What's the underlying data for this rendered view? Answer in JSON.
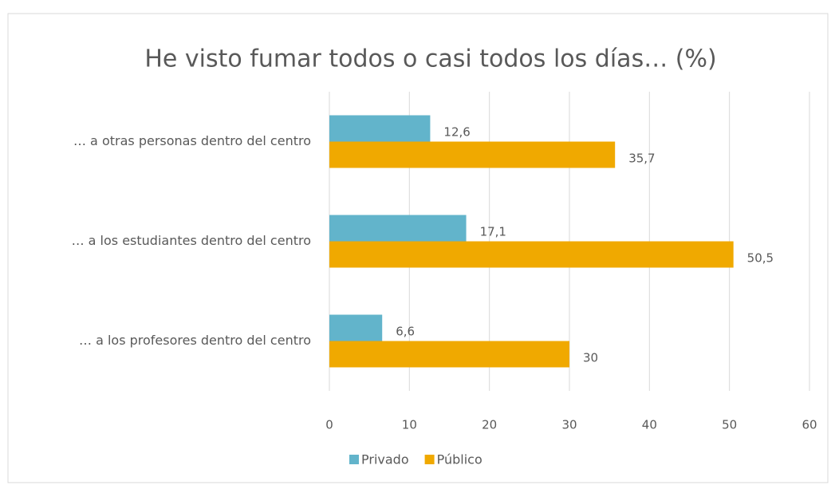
{
  "chart_data": {
    "type": "hbar",
    "title": "He visto fumar todos o casi todos los días… (%)",
    "categories": [
      "… a otras personas dentro del centro",
      "… a los estudiantes dentro del centro",
      "… a los profesores dentro del centro"
    ],
    "series": [
      {
        "name": "Privado",
        "color": "#62b4cb",
        "values": [
          12.6,
          17.1,
          6.6
        ],
        "value_labels": [
          "12,6",
          "17,1",
          "6,6"
        ]
      },
      {
        "name": "Público",
        "color": "#f0a900",
        "values": [
          35.7,
          50.5,
          30
        ],
        "value_labels": [
          "35,7",
          "50,5",
          "30"
        ]
      }
    ],
    "xlim": [
      0,
      60
    ],
    "xticks": [
      0,
      10,
      20,
      30,
      40,
      50,
      60
    ],
    "grid": true,
    "legend": "bottom"
  }
}
